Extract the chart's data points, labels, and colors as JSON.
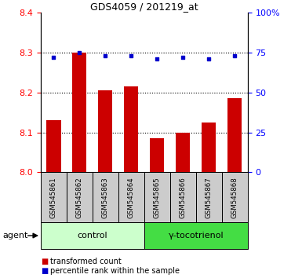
{
  "title": "GDS4059 / 201219_at",
  "samples": [
    "GSM545861",
    "GSM545862",
    "GSM545863",
    "GSM545864",
    "GSM545865",
    "GSM545866",
    "GSM545867",
    "GSM545868"
  ],
  "bar_values": [
    8.13,
    8.3,
    8.205,
    8.215,
    8.085,
    8.1,
    8.125,
    8.185
  ],
  "dot_values": [
    72,
    75,
    73,
    73,
    71,
    72,
    71,
    73
  ],
  "bar_color": "#cc0000",
  "dot_color": "#0000cc",
  "ylim_left": [
    8.0,
    8.4
  ],
  "ylim_right": [
    0,
    100
  ],
  "yticks_left": [
    8.0,
    8.1,
    8.2,
    8.3,
    8.4
  ],
  "yticks_right": [
    0,
    25,
    50,
    75,
    100
  ],
  "groups": [
    {
      "label": "control",
      "indices": [
        0,
        1,
        2,
        3
      ],
      "color": "#ccffcc"
    },
    {
      "label": "γ-tocotrienol",
      "indices": [
        4,
        5,
        6,
        7
      ],
      "color": "#44dd44"
    }
  ],
  "agent_label": "agent",
  "legend_bar_label": "transformed count",
  "legend_dot_label": "percentile rank within the sample",
  "background_color": "#ffffff",
  "sample_box_color": "#cccccc",
  "grid_style": "dotted",
  "grid_color": "#000000",
  "right_tick_labels": [
    "0",
    "25",
    "50",
    "75",
    "100%"
  ]
}
